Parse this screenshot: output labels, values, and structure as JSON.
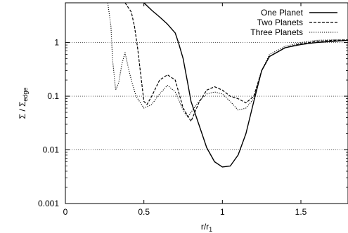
{
  "chart_data": {
    "type": "line",
    "title": "",
    "xlabel": "r/r1",
    "xlabel_parts": {
      "main": "r/r",
      "sub": "1"
    },
    "ylabel": "Σ / Σedge",
    "ylabel_parts": {
      "main": "Σ / Σ",
      "sub": "edge"
    },
    "x_scale": "linear",
    "y_scale": "log",
    "xlim": [
      0,
      1.8
    ],
    "ylim": [
      0.001,
      5.5
    ],
    "x_ticks": [
      0,
      0.5,
      1,
      1.5
    ],
    "x_tick_labels": [
      "0",
      "0.5",
      "1",
      "1.5"
    ],
    "y_ticks": [
      0.001,
      0.01,
      0.1,
      1
    ],
    "y_tick_labels": [
      "0.001",
      "0.01",
      "0.1",
      "1"
    ],
    "grid": "horizontal dotted at y ticks",
    "legend_position": "top-right",
    "series": [
      {
        "name": "One Planet",
        "style": "solid",
        "color": "#000000",
        "points": [
          [
            0.5,
            5.5
          ],
          [
            0.55,
            4.0
          ],
          [
            0.6,
            3.0
          ],
          [
            0.65,
            2.2
          ],
          [
            0.7,
            1.5
          ],
          [
            0.72,
            1.0
          ],
          [
            0.75,
            0.5
          ],
          [
            0.78,
            0.17
          ],
          [
            0.8,
            0.08
          ],
          [
            0.85,
            0.03
          ],
          [
            0.9,
            0.011
          ],
          [
            0.95,
            0.006
          ],
          [
            1.0,
            0.0048
          ],
          [
            1.05,
            0.005
          ],
          [
            1.1,
            0.008
          ],
          [
            1.15,
            0.02
          ],
          [
            1.2,
            0.08
          ],
          [
            1.25,
            0.3
          ],
          [
            1.3,
            0.55
          ],
          [
            1.4,
            0.8
          ],
          [
            1.5,
            0.92
          ],
          [
            1.6,
            1.0
          ],
          [
            1.7,
            1.05
          ],
          [
            1.8,
            1.1
          ]
        ]
      },
      {
        "name": "Two Planets",
        "style": "dashed",
        "color": "#000000",
        "points": [
          [
            0.38,
            5.5
          ],
          [
            0.42,
            3.7
          ],
          [
            0.44,
            2.0
          ],
          [
            0.46,
            0.8
          ],
          [
            0.48,
            0.25
          ],
          [
            0.5,
            0.08
          ],
          [
            0.52,
            0.07
          ],
          [
            0.55,
            0.1
          ],
          [
            0.6,
            0.2
          ],
          [
            0.65,
            0.25
          ],
          [
            0.7,
            0.2
          ],
          [
            0.75,
            0.06
          ],
          [
            0.8,
            0.034
          ],
          [
            0.85,
            0.075
          ],
          [
            0.9,
            0.13
          ],
          [
            0.95,
            0.15
          ],
          [
            1.0,
            0.13
          ],
          [
            1.05,
            0.1
          ],
          [
            1.1,
            0.09
          ],
          [
            1.15,
            0.075
          ],
          [
            1.2,
            0.1
          ],
          [
            1.25,
            0.3
          ],
          [
            1.3,
            0.55
          ],
          [
            1.4,
            0.8
          ],
          [
            1.5,
            0.95
          ],
          [
            1.6,
            1.05
          ],
          [
            1.7,
            1.1
          ],
          [
            1.8,
            1.12
          ]
        ]
      },
      {
        "name": "Three Planets",
        "style": "dotted",
        "color": "#000000",
        "points": [
          [
            0.27,
            5.5
          ],
          [
            0.29,
            2.0
          ],
          [
            0.3,
            0.5
          ],
          [
            0.32,
            0.13
          ],
          [
            0.34,
            0.18
          ],
          [
            0.36,
            0.4
          ],
          [
            0.38,
            0.65
          ],
          [
            0.4,
            0.35
          ],
          [
            0.42,
            0.2
          ],
          [
            0.45,
            0.1
          ],
          [
            0.5,
            0.06
          ],
          [
            0.55,
            0.07
          ],
          [
            0.6,
            0.11
          ],
          [
            0.65,
            0.16
          ],
          [
            0.7,
            0.12
          ],
          [
            0.75,
            0.055
          ],
          [
            0.78,
            0.04
          ],
          [
            0.8,
            0.05
          ],
          [
            0.85,
            0.08
          ],
          [
            0.9,
            0.11
          ],
          [
            0.95,
            0.12
          ],
          [
            1.0,
            0.11
          ],
          [
            1.05,
            0.08
          ],
          [
            1.1,
            0.055
          ],
          [
            1.15,
            0.06
          ],
          [
            1.2,
            0.09
          ],
          [
            1.25,
            0.3
          ],
          [
            1.3,
            0.6
          ],
          [
            1.4,
            0.85
          ],
          [
            1.5,
            1.0
          ],
          [
            1.6,
            1.1
          ],
          [
            1.7,
            1.12
          ],
          [
            1.8,
            1.12
          ]
        ]
      }
    ]
  }
}
